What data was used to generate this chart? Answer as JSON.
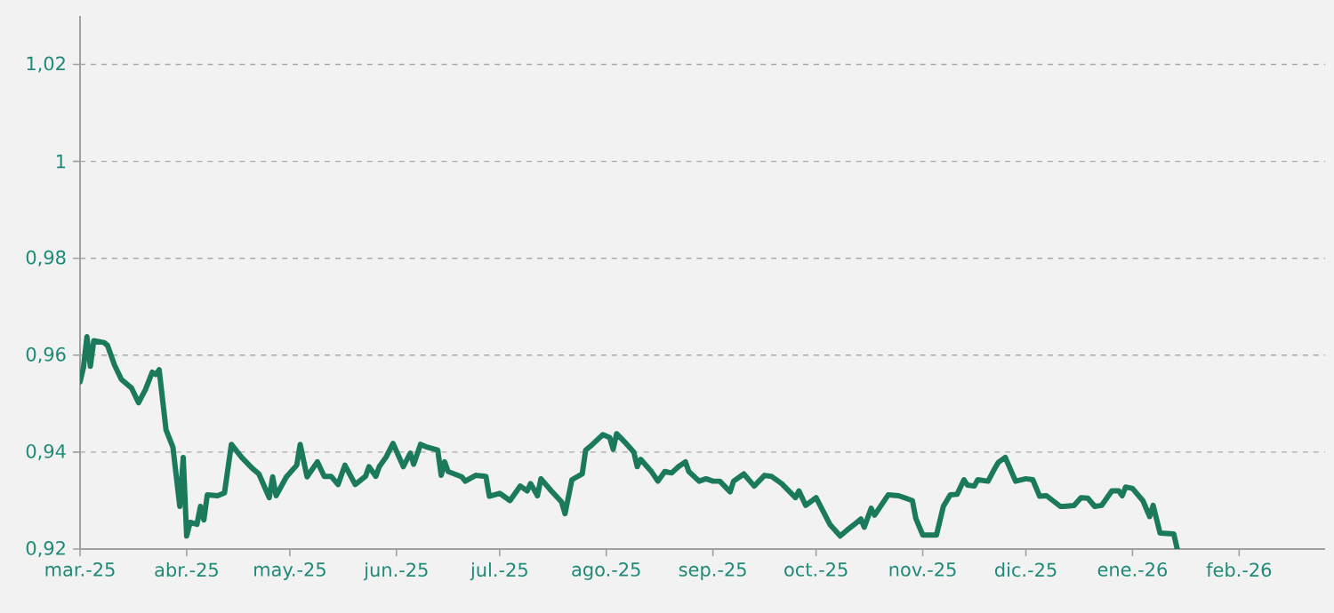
{
  "chart_data": {
    "type": "line",
    "xlim": [
      "2025-03-01",
      "2026-02-26"
    ],
    "ylim": [
      0.92,
      1.03
    ],
    "xticks": [
      {
        "value": "2025-03-01",
        "label": "mar.-25"
      },
      {
        "value": "2025-04-01",
        "label": "abr.-25"
      },
      {
        "value": "2025-05-01",
        "label": "may.-25"
      },
      {
        "value": "2025-06-01",
        "label": "jun.-25"
      },
      {
        "value": "2025-07-01",
        "label": "jul.-25"
      },
      {
        "value": "2025-08-01",
        "label": "ago.-25"
      },
      {
        "value": "2025-09-01",
        "label": "sep.-25"
      },
      {
        "value": "2025-10-01",
        "label": "oct.-25"
      },
      {
        "value": "2025-11-01",
        "label": "nov.-25"
      },
      {
        "value": "2025-12-01",
        "label": "dic.-25"
      },
      {
        "value": "2026-01-01",
        "label": "ene.-26"
      },
      {
        "value": "2026-02-01",
        "label": "feb.-26"
      }
    ],
    "yticks": [
      {
        "value": 0.92,
        "label": "0,92"
      },
      {
        "value": 0.94,
        "label": "0,94"
      },
      {
        "value": 0.96,
        "label": "0,96"
      },
      {
        "value": 0.98,
        "label": "0,98"
      },
      1,
      {
        "value": 1.02,
        "label": "1,02"
      }
    ],
    "grid": "y",
    "marker": "none",
    "line_style": "solid",
    "x": [
      "2025-03-01",
      "2025-03-02",
      "2025-03-03",
      "2025-03-04",
      "2025-03-05",
      "2025-03-08",
      "2025-03-09",
      "2025-03-11",
      "2025-03-13",
      "2025-03-16",
      "2025-03-18",
      "2025-03-20",
      "2025-03-22",
      "2025-03-23",
      "2025-03-24",
      "2025-03-26",
      "2025-03-28",
      "2025-03-30",
      "2025-03-31",
      "2025-04-01",
      "2025-04-02",
      "2025-04-04",
      "2025-04-05",
      "2025-04-06",
      "2025-04-07",
      "2025-04-10",
      "2025-04-12",
      "2025-04-14",
      "2025-04-17",
      "2025-04-20",
      "2025-04-22",
      "2025-04-25",
      "2025-04-26",
      "2025-04-27",
      "2025-04-30",
      "2025-05-03",
      "2025-05-04",
      "2025-05-06",
      "2025-05-09",
      "2025-05-11",
      "2025-05-13",
      "2025-05-15",
      "2025-05-17",
      "2025-05-20",
      "2025-05-23",
      "2025-05-24",
      "2025-05-26",
      "2025-05-27",
      "2025-05-29",
      "2025-05-31",
      "2025-06-03",
      "2025-06-05",
      "2025-06-06",
      "2025-06-08",
      "2025-06-10",
      "2025-06-13",
      "2025-06-14",
      "2025-06-15",
      "2025-06-16",
      "2025-06-20",
      "2025-06-21",
      "2025-06-24",
      "2025-06-27",
      "2025-06-28",
      "2025-07-01",
      "2025-07-04",
      "2025-07-07",
      "2025-07-09",
      "2025-07-10",
      "2025-07-12",
      "2025-07-13",
      "2025-07-16",
      "2025-07-19",
      "2025-07-20",
      "2025-07-22",
      "2025-07-25",
      "2025-07-26",
      "2025-07-28",
      "2025-07-31",
      "2025-08-02",
      "2025-08-03",
      "2025-08-04",
      "2025-08-07",
      "2025-08-09",
      "2025-08-10",
      "2025-08-11",
      "2025-08-14",
      "2025-08-16",
      "2025-08-18",
      "2025-08-20",
      "2025-08-22",
      "2025-08-24",
      "2025-08-25",
      "2025-08-28",
      "2025-08-30",
      "2025-09-01",
      "2025-09-03",
      "2025-09-06",
      "2025-09-07",
      "2025-09-10",
      "2025-09-13",
      "2025-09-16",
      "2025-09-18",
      "2025-09-21",
      "2025-09-25",
      "2025-09-26",
      "2025-09-28",
      "2025-10-01",
      "2025-10-05",
      "2025-10-08",
      "2025-10-10",
      "2025-10-12",
      "2025-10-14",
      "2025-10-15",
      "2025-10-17",
      "2025-10-18",
      "2025-10-22",
      "2025-10-25",
      "2025-10-29",
      "2025-10-30",
      "2025-11-01",
      "2025-11-05",
      "2025-11-07",
      "2025-11-09",
      "2025-11-11",
      "2025-11-13",
      "2025-11-14",
      "2025-11-16",
      "2025-11-17",
      "2025-11-20",
      "2025-11-22",
      "2025-11-23",
      "2025-11-25",
      "2025-11-28",
      "2025-12-01",
      "2025-12-03",
      "2025-12-05",
      "2025-12-07",
      "2025-12-11",
      "2025-12-12",
      "2025-12-15",
      "2025-12-17",
      "2025-12-19",
      "2025-12-21",
      "2025-12-23",
      "2025-12-26",
      "2025-12-28",
      "2025-12-29",
      "2025-12-30",
      "2026-01-01",
      "2026-01-04",
      "2026-01-06",
      "2026-01-07",
      "2026-01-09",
      "2026-01-13",
      "2026-01-14"
    ],
    "series": [
      {
        "color": "#1b7a5c",
        "values": [
          0.9545,
          0.9575,
          0.9638,
          0.9577,
          0.963,
          0.9626,
          0.962,
          0.958,
          0.955,
          0.9532,
          0.9502,
          0.9529,
          0.9565,
          0.956,
          0.957,
          0.9446,
          0.941,
          0.9288,
          0.9389,
          0.9227,
          0.9255,
          0.9251,
          0.9288,
          0.926,
          0.9312,
          0.931,
          0.9316,
          0.9416,
          0.9389,
          0.9367,
          0.9355,
          0.9306,
          0.9349,
          0.931,
          0.9349,
          0.9373,
          0.9416,
          0.9349,
          0.938,
          0.935,
          0.935,
          0.9333,
          0.9373,
          0.9333,
          0.935,
          0.937,
          0.935,
          0.937,
          0.939,
          0.9418,
          0.937,
          0.9398,
          0.9375,
          0.9416,
          0.941,
          0.9404,
          0.9352,
          0.938,
          0.936,
          0.9349,
          0.934,
          0.9352,
          0.935,
          0.9309,
          0.9315,
          0.93,
          0.933,
          0.932,
          0.9335,
          0.931,
          0.9345,
          0.932,
          0.9297,
          0.9273,
          0.9343,
          0.9355,
          0.9404,
          0.9416,
          0.9436,
          0.943,
          0.9406,
          0.9438,
          0.9416,
          0.94,
          0.937,
          0.9385,
          0.9361,
          0.934,
          0.936,
          0.9357,
          0.937,
          0.938,
          0.936,
          0.934,
          0.9345,
          0.934,
          0.934,
          0.9318,
          0.934,
          0.9355,
          0.933,
          0.9352,
          0.935,
          0.9335,
          0.9306,
          0.932,
          0.929,
          0.9306,
          0.9251,
          0.9227,
          0.9239,
          0.925,
          0.9262,
          0.9245,
          0.9284,
          0.927,
          0.9312,
          0.931,
          0.93,
          0.9263,
          0.9229,
          0.9229,
          0.9288,
          0.9312,
          0.9313,
          0.9343,
          0.9332,
          0.933,
          0.9343,
          0.934,
          0.9367,
          0.9379,
          0.9389,
          0.934,
          0.9345,
          0.9343,
          0.9309,
          0.931,
          0.9288,
          0.9288,
          0.929,
          0.9306,
          0.9305,
          0.9288,
          0.929,
          0.932,
          0.932,
          0.931,
          0.9328,
          0.9325,
          0.93,
          0.9267,
          0.929,
          0.9233,
          0.9231,
          0.92
        ]
      }
    ]
  }
}
